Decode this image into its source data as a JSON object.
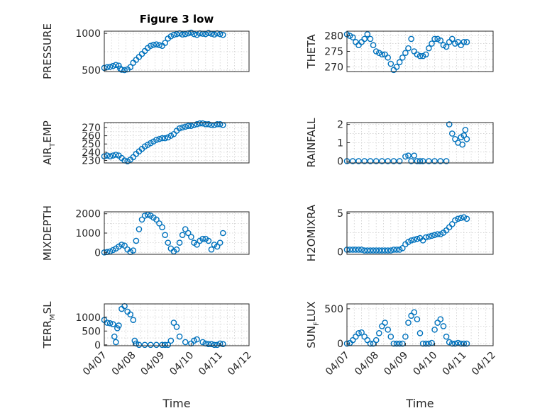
{
  "figure_title": "Figure 3 low",
  "marker_color": "#0072BD",
  "chart_data": [
    {
      "type": "scatter",
      "panel": "top-left",
      "title": "Figure 3 low",
      "ylabel": "PRESSURE",
      "ylabel_parts": [
        "PRESSURE"
      ],
      "xlabel": "",
      "ylim": [
        480,
        1030
      ],
      "yticks": [
        500,
        1000
      ],
      "xlim": [
        0,
        5
      ],
      "xticks": [],
      "xticklabels": [],
      "x": [
        0,
        0.1,
        0.2,
        0.3,
        0.4,
        0.5,
        0.55,
        0.6,
        0.7,
        0.8,
        0.9,
        1.0,
        1.1,
        1.2,
        1.3,
        1.4,
        1.5,
        1.6,
        1.7,
        1.8,
        1.9,
        2.0,
        2.1,
        2.2,
        2.3,
        2.4,
        2.5,
        2.6,
        2.7,
        2.8,
        2.9,
        3.0,
        3.1,
        3.2,
        3.3,
        3.4,
        3.5,
        3.6,
        3.7,
        3.8,
        3.9,
        4.0,
        4.1
      ],
      "y": [
        530,
        540,
        545,
        555,
        570,
        560,
        520,
        505,
        500,
        510,
        540,
        600,
        640,
        680,
        720,
        760,
        800,
        830,
        845,
        850,
        840,
        830,
        870,
        930,
        960,
        980,
        990,
        1000,
        985,
        990,
        1000,
        1010,
        990,
        980,
        1000,
        995,
        990,
        1005,
        995,
        985,
        1000,
        990,
        980
      ]
    },
    {
      "type": "scatter",
      "panel": "top-right",
      "title": "",
      "ylabel": "THETA",
      "ylabel_parts": [
        "THETA"
      ],
      "xlabel": "",
      "ylim": [
        268.5,
        281.5
      ],
      "yticks": [
        270,
        275,
        280
      ],
      "xlim": [
        0,
        5
      ],
      "xticks": [],
      "xticklabels": [],
      "x": [
        0,
        0.1,
        0.2,
        0.3,
        0.4,
        0.5,
        0.6,
        0.7,
        0.8,
        0.9,
        1.0,
        1.1,
        1.2,
        1.3,
        1.4,
        1.5,
        1.6,
        1.7,
        1.8,
        1.9,
        2.0,
        2.1,
        2.2,
        2.3,
        2.4,
        2.5,
        2.6,
        2.7,
        2.8,
        2.9,
        3.0,
        3.1,
        3.2,
        3.3,
        3.4,
        3.5,
        3.6,
        3.7,
        3.8,
        3.9,
        4.0,
        4.1
      ],
      "y": [
        280.5,
        280,
        279.5,
        278,
        277,
        278,
        279,
        280.5,
        279,
        277,
        275,
        274.5,
        274,
        274,
        273,
        271,
        269,
        270,
        271.5,
        273,
        274.5,
        276,
        279,
        275,
        274,
        273.5,
        273.5,
        274,
        276,
        277.5,
        279,
        279,
        278.5,
        277,
        276.5,
        278,
        279,
        277.5,
        278,
        277,
        278,
        278
      ]
    },
    {
      "type": "scatter",
      "panel": "second-left",
      "title": "",
      "ylabel": "AIR_TEMP",
      "ylabel_parts": [
        "AIR",
        "T",
        "EMP"
      ],
      "xlabel": "",
      "ylim": [
        227,
        276
      ],
      "yticks": [
        230,
        240,
        250,
        260,
        270
      ],
      "xlim": [
        0,
        5
      ],
      "xticks": [],
      "xticklabels": [],
      "x": [
        0,
        0.1,
        0.2,
        0.3,
        0.4,
        0.5,
        0.6,
        0.7,
        0.8,
        0.9,
        1.0,
        1.1,
        1.2,
        1.3,
        1.4,
        1.5,
        1.6,
        1.7,
        1.8,
        1.9,
        2.0,
        2.1,
        2.2,
        2.3,
        2.4,
        2.5,
        2.6,
        2.7,
        2.8,
        2.9,
        3.0,
        3.1,
        3.2,
        3.3,
        3.4,
        3.5,
        3.6,
        3.7,
        3.8,
        3.9,
        4.0,
        4.1
      ],
      "y": [
        235,
        236,
        235,
        236,
        237,
        236,
        233,
        230,
        229,
        231,
        234,
        238,
        241,
        244,
        247,
        249,
        251,
        253,
        255,
        256,
        257,
        257,
        258,
        260,
        262,
        266,
        269,
        270,
        271,
        272,
        272,
        273,
        274,
        275,
        275,
        274,
        274,
        273,
        273,
        274,
        274,
        273
      ]
    },
    {
      "type": "scatter",
      "panel": "second-right",
      "title": "",
      "ylabel": "RAINFALL",
      "ylabel_parts": [
        "RAINFALL"
      ],
      "xlabel": "",
      "ylim": [
        -0.1,
        2.1
      ],
      "yticks": [
        0,
        1,
        2
      ],
      "xlim": [
        0,
        5
      ],
      "xticks": [],
      "xticklabels": [],
      "x": [
        0,
        0.2,
        0.4,
        0.6,
        0.8,
        1.0,
        1.2,
        1.4,
        1.6,
        1.8,
        2.0,
        2.1,
        2.2,
        2.3,
        2.4,
        2.5,
        2.6,
        2.8,
        3.0,
        3.2,
        3.4,
        3.5,
        3.6,
        3.7,
        3.8,
        3.9,
        3.95,
        4.0,
        4.05,
        4.1
      ],
      "y": [
        0,
        0,
        0,
        0,
        0,
        0,
        0,
        0,
        0,
        0,
        0.25,
        0.3,
        0,
        0.3,
        0,
        0,
        0,
        0,
        0,
        0,
        0,
        2,
        1.5,
        1.2,
        1.0,
        1.3,
        0.9,
        1.4,
        1.7,
        1.2
      ]
    },
    {
      "type": "scatter",
      "panel": "third-left",
      "title": "",
      "ylabel": "MIXDEPTH",
      "ylabel_parts": [
        "MIXDEPTH"
      ],
      "xlabel": "",
      "ylim": [
        -100,
        2100
      ],
      "yticks": [
        0,
        1000,
        2000
      ],
      "xlim": [
        0,
        5
      ],
      "xticks": [],
      "xticklabels": [],
      "x": [
        0,
        0.1,
        0.2,
        0.3,
        0.4,
        0.5,
        0.6,
        0.7,
        0.8,
        0.9,
        1.0,
        1.1,
        1.2,
        1.3,
        1.4,
        1.5,
        1.6,
        1.7,
        1.8,
        1.9,
        2.0,
        2.1,
        2.2,
        2.3,
        2.4,
        2.5,
        2.6,
        2.7,
        2.8,
        2.9,
        3.0,
        3.1,
        3.2,
        3.3,
        3.4,
        3.5,
        3.6,
        3.7,
        3.8,
        3.9,
        4.0,
        4.1
      ],
      "y": [
        0,
        20,
        50,
        120,
        200,
        300,
        400,
        350,
        150,
        20,
        100,
        600,
        1200,
        1700,
        1900,
        1950,
        1900,
        1800,
        1700,
        1500,
        1300,
        900,
        500,
        200,
        50,
        150,
        500,
        900,
        1200,
        1000,
        800,
        500,
        400,
        600,
        700,
        700,
        600,
        150,
        400,
        300,
        500,
        1000
      ]
    },
    {
      "type": "scatter",
      "panel": "third-right",
      "title": "",
      "ylabel": "H2OMIXRA",
      "ylabel_parts": [
        "H2OMIXRA"
      ],
      "xlabel": "",
      "ylim": [
        -0.3,
        5.2
      ],
      "yticks": [
        0,
        5
      ],
      "xlim": [
        0,
        5
      ],
      "xticks": [],
      "xticklabels": [],
      "x": [
        0,
        0.1,
        0.2,
        0.3,
        0.4,
        0.5,
        0.6,
        0.7,
        0.8,
        0.9,
        1.0,
        1.1,
        1.2,
        1.3,
        1.4,
        1.5,
        1.6,
        1.7,
        1.8,
        1.9,
        2.0,
        2.1,
        2.2,
        2.3,
        2.4,
        2.5,
        2.6,
        2.7,
        2.8,
        2.9,
        3.0,
        3.1,
        3.2,
        3.3,
        3.4,
        3.5,
        3.6,
        3.7,
        3.8,
        3.9,
        4.0,
        4.1
      ],
      "y": [
        0.3,
        0.3,
        0.3,
        0.3,
        0.3,
        0.3,
        0.2,
        0.2,
        0.2,
        0.2,
        0.2,
        0.2,
        0.2,
        0.2,
        0.2,
        0.2,
        0.3,
        0.3,
        0.3,
        0.5,
        1.0,
        1.3,
        1.5,
        1.6,
        1.7,
        1.8,
        1.5,
        1.9,
        2.0,
        2.1,
        2.2,
        2.3,
        2.3,
        2.5,
        2.8,
        3.2,
        3.6,
        4.1,
        4.3,
        4.4,
        4.5,
        4.3
      ]
    },
    {
      "type": "scatter",
      "panel": "bottom-left",
      "title": "",
      "ylabel": "TERR_MSL",
      "ylabel_parts": [
        "TERR",
        "M",
        "SL"
      ],
      "xlabel": "Time",
      "ylim": [
        -30,
        1480
      ],
      "yticks": [
        0,
        500,
        1000
      ],
      "xlim": [
        0,
        5
      ],
      "xticks": [
        0,
        1,
        2,
        3,
        4,
        5
      ],
      "xticklabels": [
        "04/07",
        "04/08",
        "04/09",
        "04/10",
        "04/11",
        "04/12"
      ],
      "x": [
        0,
        0.1,
        0.2,
        0.3,
        0.35,
        0.4,
        0.45,
        0.5,
        0.6,
        0.7,
        0.8,
        0.9,
        1.0,
        1.05,
        1.1,
        1.2,
        1.4,
        1.6,
        1.8,
        2.0,
        2.1,
        2.2,
        2.3,
        2.4,
        2.5,
        2.6,
        2.8,
        3.0,
        3.1,
        3.2,
        3.4,
        3.5,
        3.6,
        3.7,
        3.8,
        3.9,
        4.0,
        4.1
      ],
      "y": [
        900,
        800,
        780,
        750,
        300,
        100,
        600,
        700,
        1300,
        1400,
        1200,
        1100,
        900,
        150,
        50,
        0,
        0,
        0,
        0,
        0,
        0,
        0,
        150,
        800,
        650,
        300,
        100,
        50,
        150,
        200,
        100,
        50,
        30,
        30,
        0,
        0,
        50,
        30
      ]
    },
    {
      "type": "scatter",
      "panel": "bottom-right",
      "title": "",
      "ylabel": "SUN_FLUX",
      "ylabel_parts": [
        "SUN",
        "F",
        "LUX"
      ],
      "xlabel": "Time",
      "ylim": [
        -30,
        570
      ],
      "yticks": [
        0,
        500
      ],
      "xlim": [
        0,
        5
      ],
      "xticks": [
        0,
        1,
        2,
        3,
        4,
        5
      ],
      "xticklabels": [
        "04/07",
        "04/08",
        "04/09",
        "04/10",
        "04/11",
        "04/12"
      ],
      "x": [
        0,
        0.1,
        0.2,
        0.3,
        0.4,
        0.5,
        0.6,
        0.7,
        0.8,
        0.9,
        1.0,
        1.1,
        1.2,
        1.3,
        1.4,
        1.5,
        1.6,
        1.7,
        1.8,
        1.9,
        2.0,
        2.1,
        2.2,
        2.3,
        2.4,
        2.5,
        2.6,
        2.7,
        2.8,
        2.9,
        3.0,
        3.1,
        3.2,
        3.3,
        3.4,
        3.5,
        3.6,
        3.7,
        3.8,
        3.9,
        4.0,
        4.1
      ],
      "y": [
        0,
        10,
        50,
        100,
        150,
        160,
        100,
        50,
        0,
        0,
        50,
        150,
        250,
        300,
        200,
        100,
        0,
        0,
        0,
        0,
        100,
        300,
        400,
        450,
        350,
        150,
        0,
        0,
        0,
        10,
        200,
        300,
        350,
        250,
        100,
        20,
        0,
        0,
        10,
        0,
        0,
        0
      ]
    }
  ]
}
